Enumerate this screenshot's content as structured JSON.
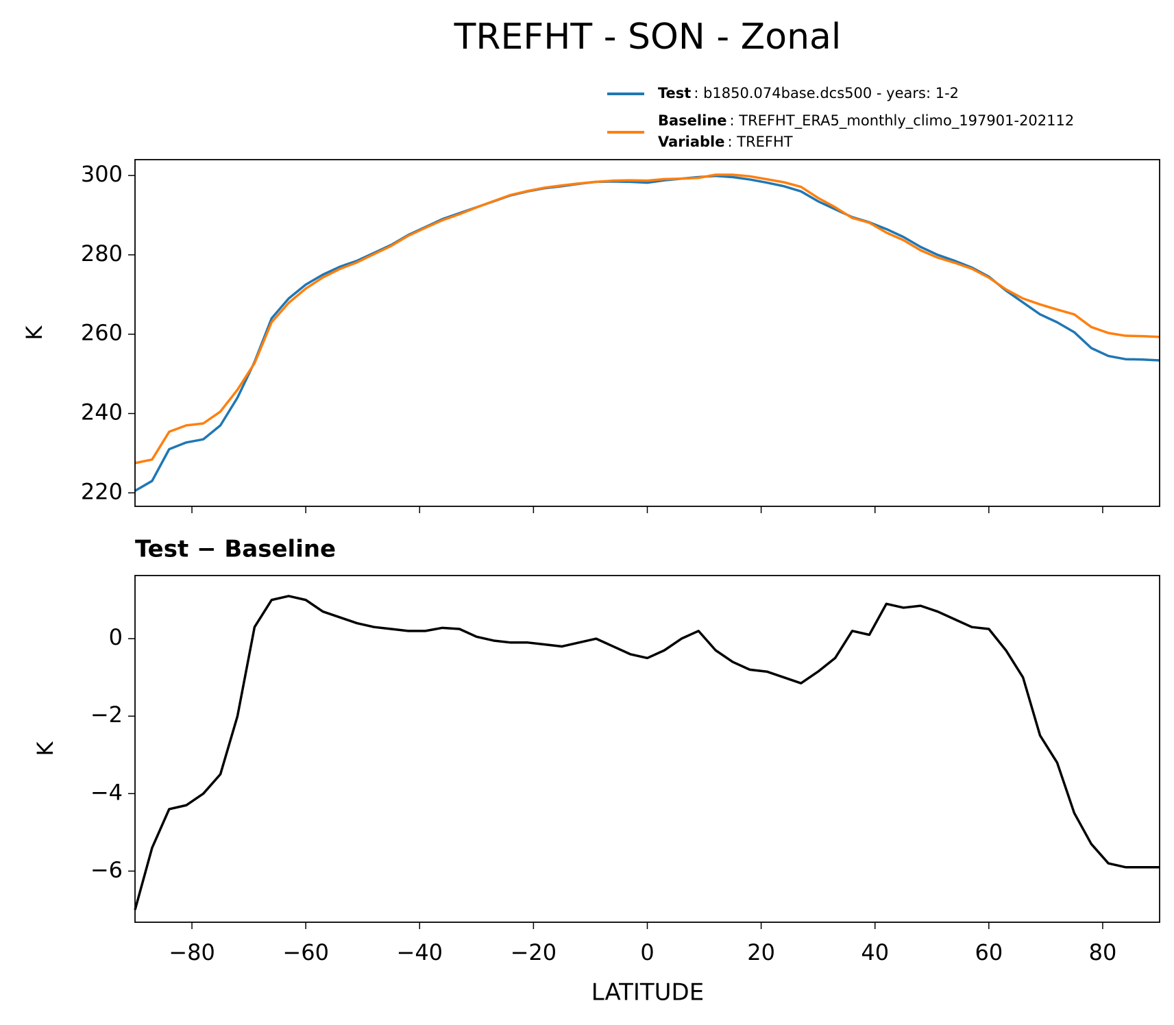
{
  "chart_data": [
    {
      "type": "line",
      "title": "TREFHT - SON - Zonal",
      "ylabel": "K",
      "x": [
        -90,
        -87,
        -84,
        -81,
        -78,
        -75,
        -72,
        -69,
        -66,
        -63,
        -60,
        -57,
        -54,
        -51,
        -48,
        -45,
        -42,
        -39,
        -36,
        -33,
        -30,
        -27,
        -24,
        -21,
        -18,
        -15,
        -12,
        -9,
        -6,
        -3,
        0,
        3,
        6,
        9,
        12,
        15,
        18,
        21,
        24,
        27,
        30,
        33,
        36,
        39,
        42,
        45,
        48,
        51,
        54,
        57,
        60,
        63,
        66,
        69,
        72,
        75,
        78,
        81,
        84,
        87,
        90
      ],
      "series": [
        {
          "name": "Test",
          "description": ": b1850.074base.dcs500 - years: 1-2",
          "color": "#1f77b4",
          "values": [
            220.5,
            223,
            231,
            232.7,
            233.5,
            237,
            244,
            253,
            264,
            269,
            272.5,
            275,
            277,
            278.5,
            280.5,
            282.5,
            285,
            287,
            289,
            290.5,
            292,
            293.5,
            295,
            296,
            296.8,
            297.3,
            297.9,
            298.4,
            298.5,
            298.4,
            298.2,
            298.8,
            299.2,
            299.6,
            299.9,
            299.6,
            299,
            298.2,
            297.3,
            296,
            293.5,
            291.5,
            289.5,
            288.2,
            286.5,
            284.5,
            282,
            280,
            278.5,
            276.8,
            274.5,
            271,
            268,
            265,
            263,
            260.5,
            256.5,
            254.5,
            253.7,
            253.6,
            253.4
          ]
        },
        {
          "name": "Baseline",
          "description": ": TREFHT_ERA5_monthly_climo_197901-202112",
          "color": "#ff7f0e",
          "values": [
            227.5,
            228.4,
            235.4,
            237,
            237.5,
            240.5,
            246,
            252.7,
            263,
            267.9,
            271.5,
            274.3,
            276.45,
            278.1,
            280.2,
            282.25,
            284.8,
            286.8,
            288.72,
            290.25,
            291.95,
            293.55,
            295.1,
            296.1,
            296.95,
            297.5,
            298,
            298.4,
            298.7,
            298.8,
            298.7,
            299.1,
            299.2,
            299.4,
            300.2,
            300.2,
            299.8,
            299.05,
            298.3,
            297.15,
            294.35,
            292,
            289.3,
            288.1,
            285.6,
            283.7,
            281.15,
            279.3,
            278,
            276.5,
            274.25,
            271.3,
            269,
            267.5,
            266.2,
            265,
            261.8,
            260.3,
            259.6,
            259.5,
            259.3
          ]
        }
      ],
      "legend_extra": {
        "name": "Variable",
        "description": ": TREFHT"
      },
      "xlim": [
        -90,
        90
      ],
      "xticks": [
        -80,
        -60,
        -40,
        -20,
        0,
        20,
        40,
        60,
        80
      ],
      "ylim": [
        216.6,
        304
      ],
      "yticks": [
        220,
        240,
        260,
        280,
        300
      ]
    },
    {
      "type": "line",
      "title": "Test − Baseline",
      "ylabel": "K",
      "xlabel": "LATITUDE",
      "x": [
        -90,
        -87,
        -84,
        -81,
        -78,
        -75,
        -72,
        -69,
        -66,
        -63,
        -60,
        -57,
        -54,
        -51,
        -48,
        -45,
        -42,
        -39,
        -36,
        -33,
        -30,
        -27,
        -24,
        -21,
        -18,
        -15,
        -12,
        -9,
        -6,
        -3,
        0,
        3,
        6,
        9,
        12,
        15,
        18,
        21,
        24,
        27,
        30,
        33,
        36,
        39,
        42,
        45,
        48,
        51,
        54,
        57,
        60,
        63,
        66,
        69,
        72,
        75,
        78,
        81,
        84,
        87,
        90
      ],
      "series": [
        {
          "color": "#000000",
          "values": [
            -7,
            -5.4,
            -4.4,
            -4.3,
            -4,
            -3.5,
            -2,
            0.3,
            1,
            1.1,
            1,
            0.7,
            0.55,
            0.4,
            0.3,
            0.25,
            0.2,
            0.2,
            0.28,
            0.25,
            0.05,
            -0.05,
            -0.1,
            -0.1,
            -0.15,
            -0.2,
            -0.1,
            0,
            -0.2,
            -0.4,
            -0.5,
            -0.3,
            0,
            0.2,
            -0.3,
            -0.6,
            -0.8,
            -0.85,
            -1,
            -1.15,
            -0.85,
            -0.5,
            0.2,
            0.1,
            0.9,
            0.8,
            0.85,
            0.7,
            0.5,
            0.3,
            0.25,
            -0.3,
            -1,
            -2.5,
            -3.2,
            -4.5,
            -5.3,
            -5.8,
            -5.9,
            -5.9,
            -5.9
          ]
        }
      ],
      "xlim": [
        -90,
        90
      ],
      "xticks": [
        {
          "value": -80,
          "label": "−80"
        },
        {
          "value": -60,
          "label": "−60"
        },
        {
          "value": -40,
          "label": "−40"
        },
        {
          "value": -20,
          "label": "−20"
        },
        0,
        20,
        40,
        60,
        80
      ],
      "ylim": [
        -7.32,
        1.63
      ],
      "yticks": [
        {
          "value": -6,
          "label": "−6"
        },
        {
          "value": -4,
          "label": "−4"
        },
        {
          "value": -2,
          "label": "−2"
        },
        0
      ]
    }
  ]
}
